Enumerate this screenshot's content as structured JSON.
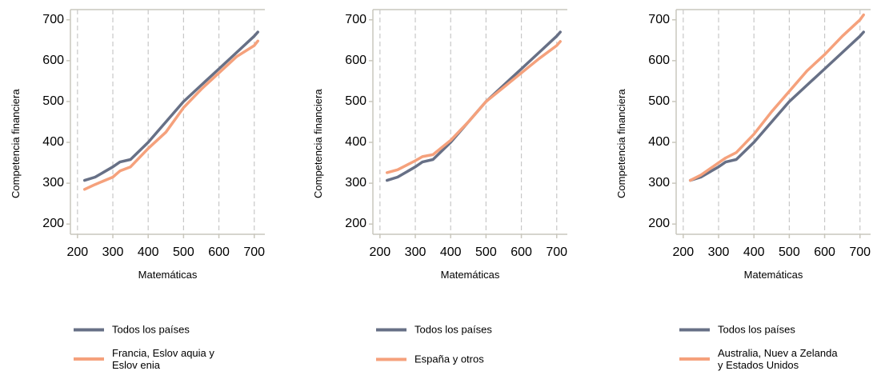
{
  "colors": {
    "all": "#677086",
    "group": "#f5a17c",
    "grid": "#c8c8c8",
    "frame": "#c9c7bd"
  },
  "chart_data": [
    {
      "type": "line",
      "xlabel": "Matemáticas",
      "ylabel": "Competencia financiera",
      "xlim": [
        180,
        730
      ],
      "ylim": [
        175,
        725
      ],
      "xticks": [
        "200",
        "300",
        "400",
        "500",
        "600",
        "700"
      ],
      "yticks": [
        "200",
        "300",
        "400",
        "500",
        "600",
        "700"
      ],
      "legend_position": "below",
      "series": [
        {
          "name": "Todos los países",
          "color": "all",
          "x": [
            220,
            250,
            300,
            320,
            350,
            400,
            450,
            500,
            550,
            600,
            650,
            700,
            710
          ],
          "y": [
            307,
            315,
            340,
            352,
            358,
            400,
            450,
            500,
            540,
            580,
            620,
            660,
            670
          ]
        },
        {
          "name": "Francia, Eslov aquia y\nEslov enia",
          "color": "group",
          "x": [
            220,
            250,
            300,
            320,
            350,
            400,
            450,
            500,
            550,
            600,
            650,
            700,
            710
          ],
          "y": [
            285,
            297,
            315,
            330,
            340,
            385,
            425,
            485,
            530,
            570,
            610,
            637,
            648
          ]
        }
      ]
    },
    {
      "type": "line",
      "xlabel": "Matemáticas",
      "ylabel": "Competencia financiera",
      "xlim": [
        180,
        730
      ],
      "ylim": [
        175,
        725
      ],
      "xticks": [
        "200",
        "300",
        "400",
        "500",
        "600",
        "700"
      ],
      "yticks": [
        "200",
        "300",
        "400",
        "500",
        "600",
        "700"
      ],
      "legend_position": "below",
      "series": [
        {
          "name": "Todos los países",
          "color": "all",
          "x": [
            220,
            250,
            300,
            320,
            350,
            400,
            450,
            500,
            550,
            600,
            650,
            700,
            710
          ],
          "y": [
            307,
            315,
            340,
            352,
            358,
            400,
            450,
            500,
            540,
            580,
            620,
            660,
            670
          ]
        },
        {
          "name": "España y otros",
          "color": "group",
          "x": [
            220,
            250,
            300,
            320,
            350,
            400,
            450,
            500,
            550,
            600,
            650,
            700,
            710
          ],
          "y": [
            326,
            333,
            355,
            365,
            370,
            405,
            450,
            500,
            535,
            570,
            605,
            637,
            647
          ]
        }
      ]
    },
    {
      "type": "line",
      "xlabel": "Matemáticas",
      "ylabel": "Competencia financiera",
      "xlim": [
        180,
        730
      ],
      "ylim": [
        175,
        725
      ],
      "xticks": [
        "200",
        "300",
        "400",
        "500",
        "600",
        "700"
      ],
      "yticks": [
        "200",
        "300",
        "400",
        "500",
        "600",
        "700"
      ],
      "legend_position": "below",
      "series": [
        {
          "name": "Todos los países",
          "color": "all",
          "x": [
            220,
            250,
            300,
            320,
            350,
            400,
            450,
            500,
            550,
            600,
            650,
            700,
            710
          ],
          "y": [
            307,
            315,
            340,
            352,
            358,
            400,
            450,
            500,
            540,
            580,
            620,
            660,
            670
          ]
        },
        {
          "name": "Australia, Nuev a Zelanda\ny Estados Unidos",
          "color": "group",
          "x": [
            220,
            250,
            300,
            320,
            350,
            400,
            450,
            500,
            550,
            600,
            650,
            700,
            710
          ],
          "y": [
            307,
            320,
            350,
            362,
            375,
            420,
            475,
            525,
            575,
            615,
            660,
            700,
            712
          ]
        }
      ]
    }
  ]
}
